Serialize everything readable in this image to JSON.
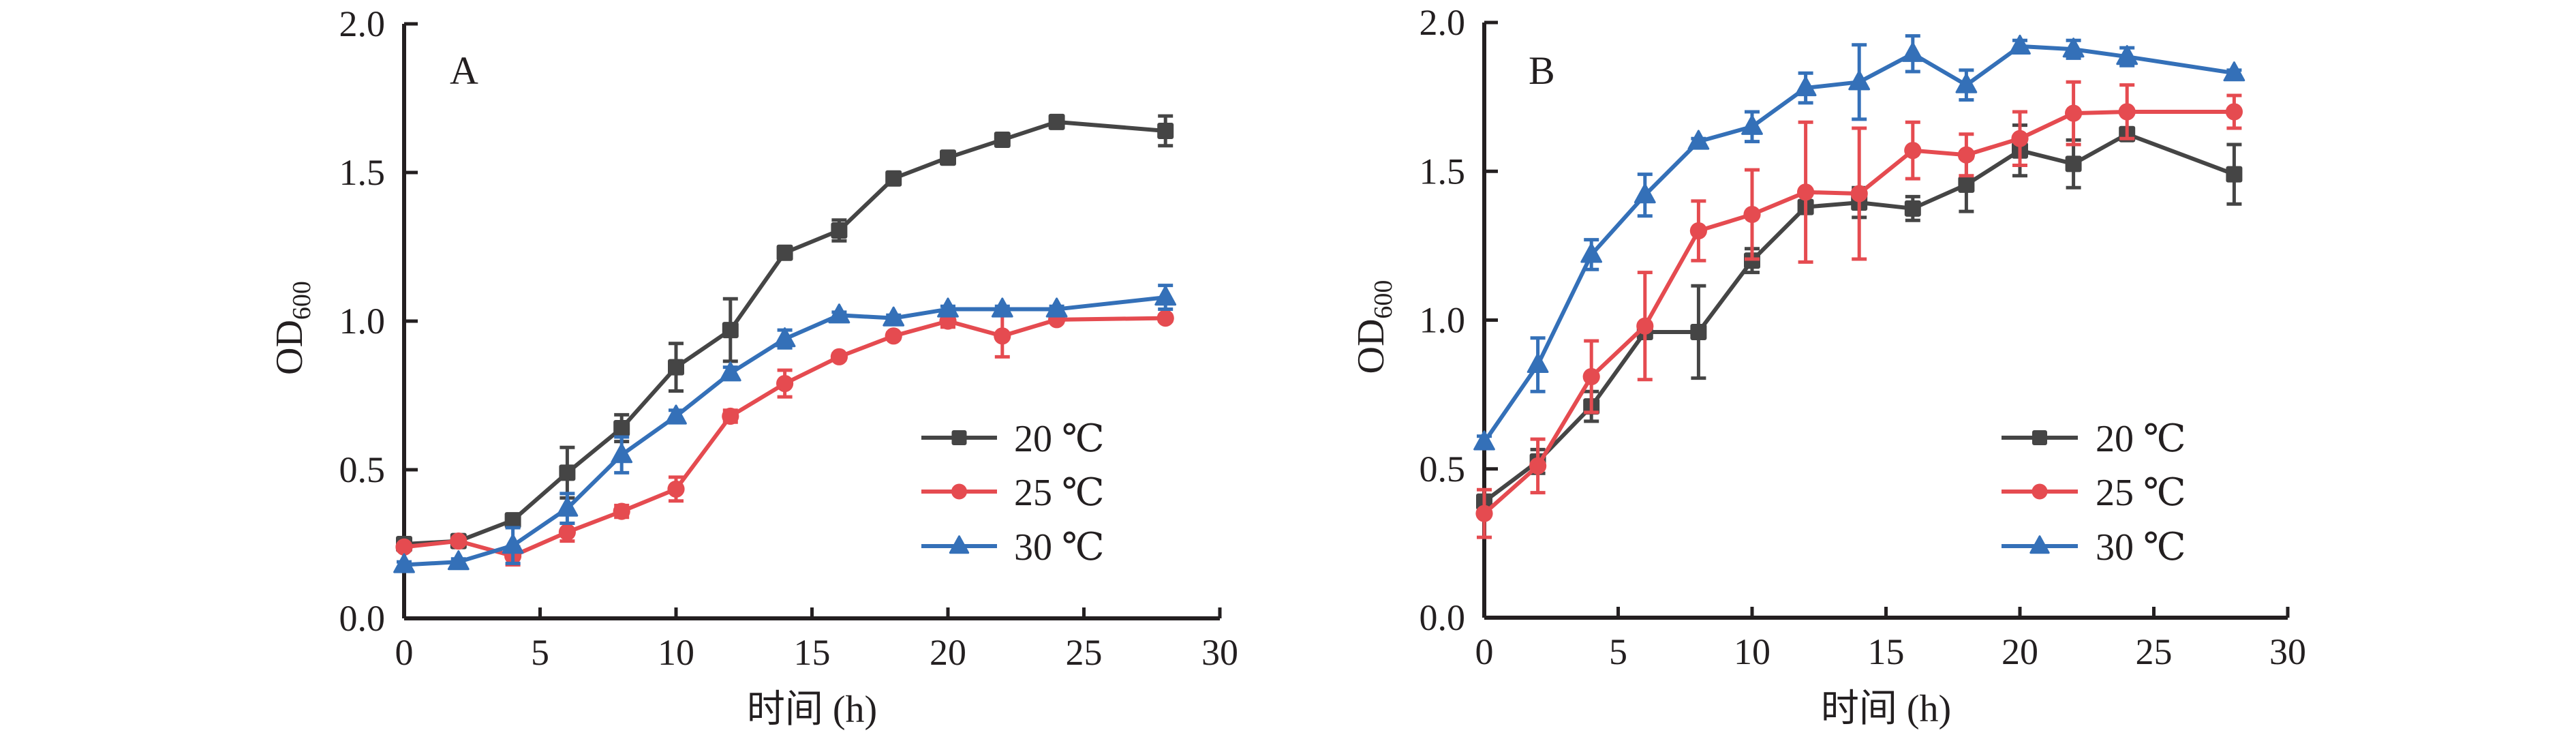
{
  "chart_data": [
    {
      "type": "line",
      "panel_label": "A",
      "xlabel": "时间 (h)",
      "ylabel": "OD",
      "ylabel_subscript": "600",
      "xlim": [
        0,
        30
      ],
      "ylim": [
        0,
        2.0
      ],
      "xticks": [
        0,
        5,
        10,
        15,
        20,
        25,
        30
      ],
      "xtick_labels": [
        "0",
        "5",
        "10",
        "15",
        "20",
        "25",
        "30"
      ],
      "yticks": [
        0,
        0.5,
        1.0,
        1.5,
        2.0
      ],
      "ytick_labels": [
        "0.0",
        "0.5",
        "1.0",
        "1.5",
        "2.0"
      ],
      "grid": false,
      "legend_position": "bottom-right",
      "x": [
        0,
        2,
        4,
        6,
        8,
        10,
        12,
        14,
        16,
        18,
        20,
        22,
        24,
        28
      ],
      "series": [
        {
          "name": "20 ℃",
          "marker": "square",
          "color": "#454545",
          "values": [
            0.25,
            0.26,
            0.33,
            0.49,
            0.64,
            0.845,
            0.97,
            1.23,
            1.305,
            1.48,
            1.55,
            1.61,
            1.67,
            1.64
          ],
          "errors": [
            0.01,
            0.01,
            0.02,
            0.085,
            0.045,
            0.08,
            0.105,
            0.02,
            0.035,
            0.01,
            0.01,
            0.01,
            0.01,
            0.05
          ]
        },
        {
          "name": "25 ℃",
          "marker": "circle",
          "color": "#e54b50",
          "values": [
            0.24,
            0.26,
            0.21,
            0.29,
            0.36,
            0.435,
            0.68,
            0.79,
            0.88,
            0.95,
            1.0,
            0.95,
            1.005,
            1.01
          ],
          "errors": [
            0.01,
            0.01,
            0.03,
            0.03,
            0.02,
            0.04,
            0.02,
            0.045,
            0.01,
            0.01,
            0.02,
            0.07,
            0.01,
            0.01
          ]
        },
        {
          "name": "30 ℃",
          "marker": "triangle",
          "color": "#3470b8",
          "values": [
            0.18,
            0.19,
            0.245,
            0.37,
            0.55,
            0.68,
            0.825,
            0.94,
            1.02,
            1.01,
            1.04,
            1.04,
            1.04,
            1.08
          ],
          "errors": [
            0.01,
            0.01,
            0.06,
            0.05,
            0.06,
            0.02,
            0.02,
            0.03,
            0.01,
            0.01,
            0.01,
            0.01,
            0.01,
            0.04
          ]
        }
      ]
    },
    {
      "type": "line",
      "panel_label": "B",
      "xlabel": "时间 (h)",
      "ylabel": "OD",
      "ylabel_subscript": "600",
      "xlim": [
        0,
        30
      ],
      "ylim": [
        0,
        2.0
      ],
      "xticks": [
        0,
        5,
        10,
        15,
        20,
        25,
        30
      ],
      "xtick_labels": [
        "0",
        "5",
        "10",
        "15",
        "20",
        "25",
        "30"
      ],
      "yticks": [
        0,
        0.5,
        1.0,
        1.5,
        2.0
      ],
      "ytick_labels": [
        "0.0",
        "0.5",
        "1.0",
        "1.5",
        "2.0"
      ],
      "grid": false,
      "legend_position": "bottom-right",
      "x": [
        0,
        2,
        4,
        6,
        8,
        10,
        12,
        14,
        16,
        18,
        20,
        22,
        24,
        28
      ],
      "series": [
        {
          "name": "20 ℃",
          "marker": "square",
          "color": "#454545",
          "values": [
            0.39,
            0.525,
            0.71,
            0.96,
            0.96,
            1.2,
            1.38,
            1.395,
            1.375,
            1.455,
            1.57,
            1.525,
            1.625,
            1.49
          ],
          "errors": [
            0.02,
            0.04,
            0.05,
            0.02,
            0.155,
            0.04,
            0.02,
            0.05,
            0.04,
            0.09,
            0.085,
            0.08,
            0.02,
            0.1
          ]
        },
        {
          "name": "25 ℃",
          "marker": "circle",
          "color": "#e54b50",
          "values": [
            0.35,
            0.51,
            0.81,
            0.98,
            1.3,
            1.355,
            1.43,
            1.425,
            1.57,
            1.555,
            1.61,
            1.695,
            1.7,
            1.7
          ],
          "errors": [
            0.08,
            0.09,
            0.12,
            0.18,
            0.1,
            0.15,
            0.235,
            0.22,
            0.095,
            0.07,
            0.09,
            0.105,
            0.09,
            0.055
          ]
        },
        {
          "name": "30 ℃",
          "marker": "triangle",
          "color": "#3470b8",
          "values": [
            0.59,
            0.85,
            1.22,
            1.42,
            1.6,
            1.65,
            1.78,
            1.8,
            1.895,
            1.79,
            1.92,
            1.91,
            1.885,
            1.83
          ],
          "errors": [
            0.02,
            0.09,
            0.05,
            0.07,
            0.01,
            0.05,
            0.05,
            0.125,
            0.06,
            0.05,
            0.02,
            0.03,
            0.03,
            0.01
          ]
        }
      ]
    }
  ]
}
